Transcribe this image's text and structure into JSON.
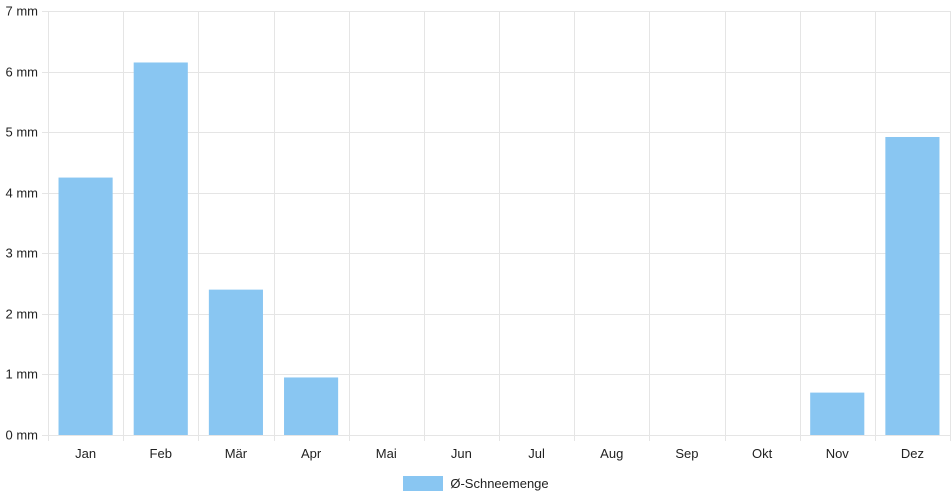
{
  "chart_data": {
    "type": "bar",
    "categories": [
      "Jan",
      "Feb",
      "Mär",
      "Apr",
      "Mai",
      "Jun",
      "Jul",
      "Aug",
      "Sep",
      "Okt",
      "Nov",
      "Dez"
    ],
    "series": [
      {
        "name": "Ø-Schneemenge",
        "values": [
          4.25,
          6.15,
          2.4,
          0.95,
          0,
          0,
          0,
          0,
          0,
          0,
          0.7,
          4.92
        ],
        "color": "#89c6f2"
      }
    ],
    "y_tick_labels": [
      "0 mm",
      "1 mm",
      "2 mm",
      "3 mm",
      "4 mm",
      "5 mm",
      "6 mm",
      "7 mm"
    ],
    "ylim": [
      0,
      7
    ],
    "y_unit": "mm",
    "grid": true,
    "legend_position": "bottom",
    "colors": {
      "bar": "#89c6f2",
      "grid": "#e5e5e5"
    }
  }
}
